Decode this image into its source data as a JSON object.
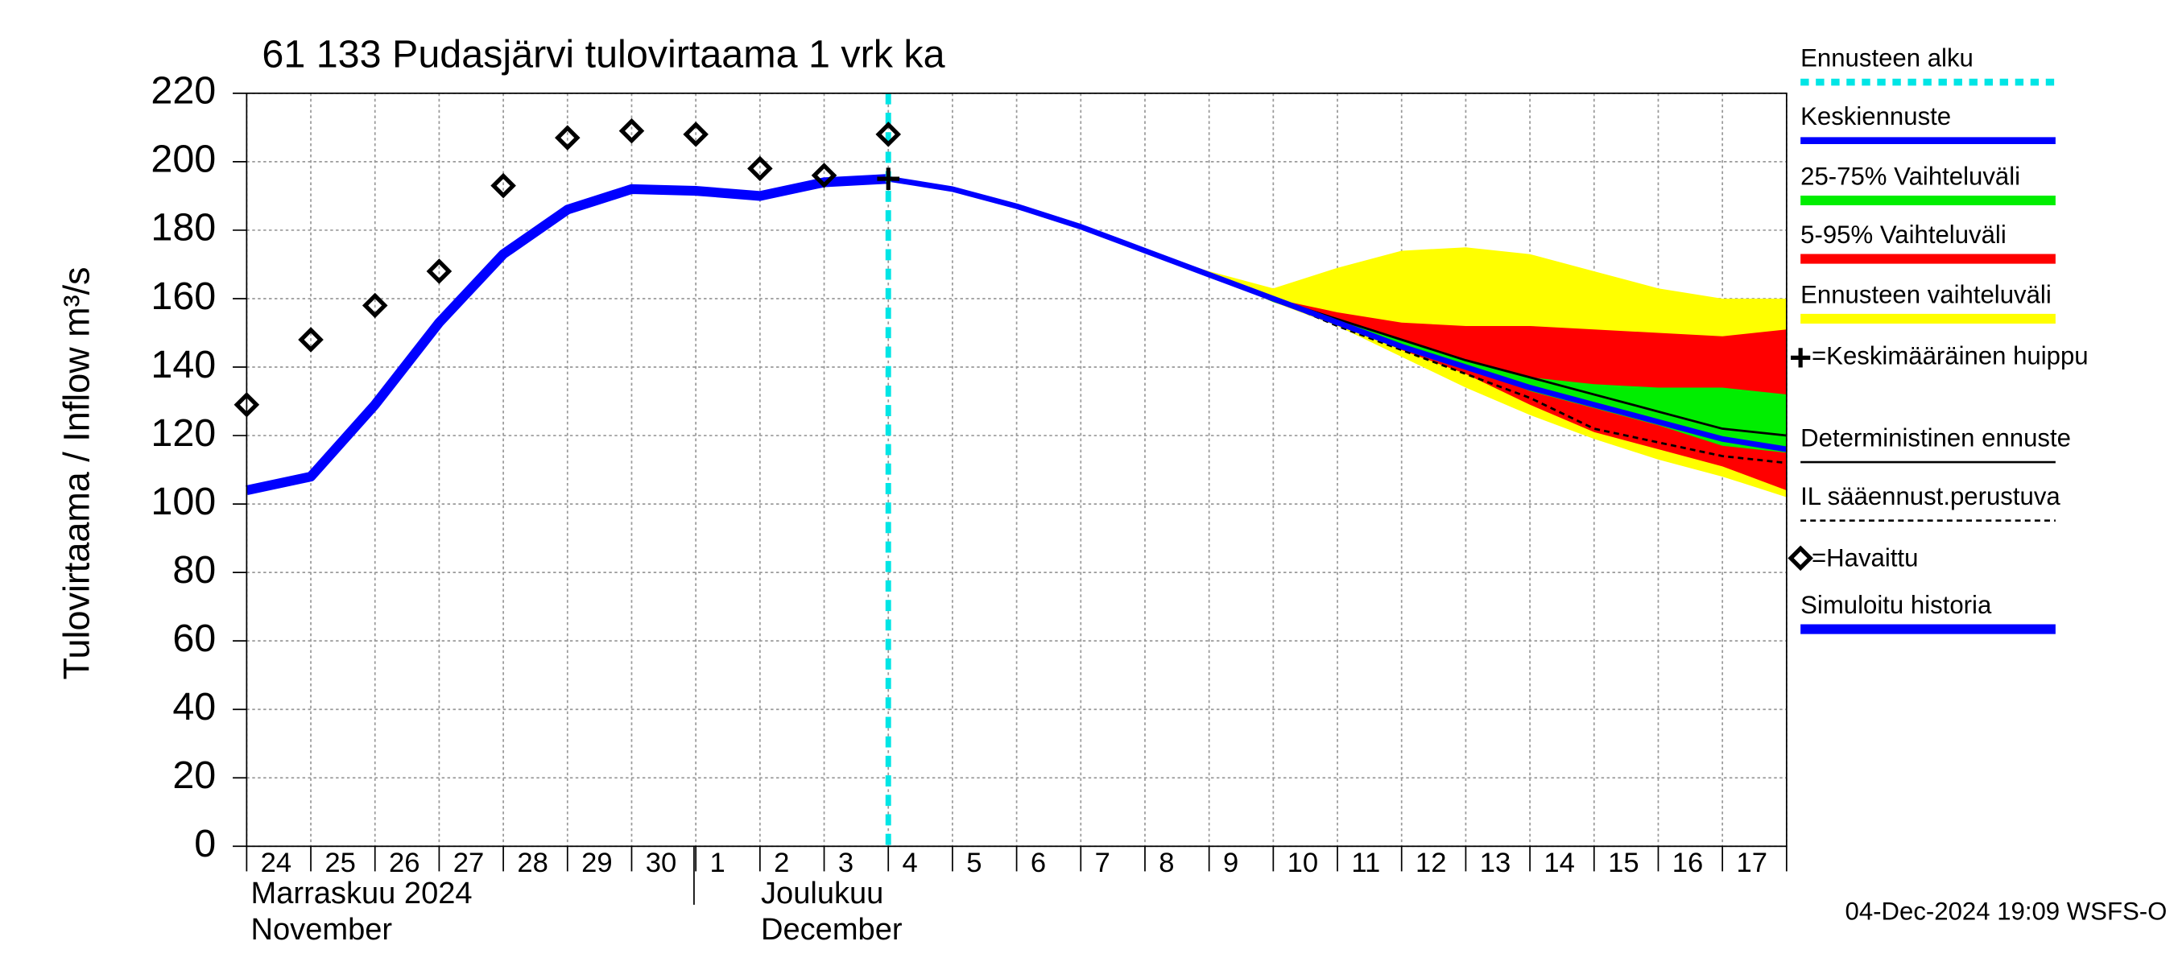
{
  "chart_data": {
    "type": "line",
    "title": "61 133 Pudasjärvi tulovirtaama 1 vrk ka",
    "y_label": "Tulovirtaama / Inflow    m³/s",
    "footer": "04-Dec-2024 19:09 WSFS-O",
    "month_labels": [
      "Marraskuu 2024",
      "November",
      "Joulukuu",
      "December"
    ],
    "categories": [
      "24",
      "25",
      "26",
      "27",
      "28",
      "29",
      "30",
      "1",
      "2",
      "3",
      "4",
      "5",
      "6",
      "7",
      "8",
      "9",
      "10",
      "11",
      "12",
      "13",
      "14",
      "15",
      "16",
      "17",
      null
    ],
    "ylim": [
      0,
      220
    ],
    "yticks": [
      0,
      20,
      40,
      60,
      80,
      100,
      120,
      140,
      160,
      180,
      200,
      220
    ],
    "grid": true,
    "forecast_start": {
      "name": "Ennusteen alku",
      "color": "#00e5e5",
      "category": "4"
    },
    "bands": [
      {
        "name": "Ennusteen vaihteluväli",
        "color": "#ffff00",
        "upper": [
          null,
          null,
          null,
          null,
          null,
          null,
          null,
          null,
          null,
          null,
          195,
          192,
          187,
          181,
          174,
          168,
          163,
          169,
          174,
          175,
          173,
          168,
          163,
          160,
          160
        ],
        "lower": [
          null,
          null,
          null,
          null,
          null,
          null,
          null,
          null,
          null,
          null,
          195,
          192,
          187,
          181,
          174,
          167,
          159,
          152,
          143,
          134,
          126,
          119,
          113,
          108,
          102
        ]
      },
      {
        "name": "5-95% Vaihteluväli",
        "color": "#ff0000",
        "upper": [
          null,
          null,
          null,
          null,
          null,
          null,
          null,
          null,
          null,
          null,
          195,
          192,
          187,
          181,
          174,
          167,
          160,
          156,
          153,
          152,
          152,
          151,
          150,
          149,
          151
        ],
        "lower": [
          null,
          null,
          null,
          null,
          null,
          null,
          null,
          null,
          null,
          null,
          195,
          192,
          187,
          181,
          174,
          167,
          159,
          153,
          145,
          138,
          129,
          121,
          116,
          111,
          104
        ]
      },
      {
        "name": "25-75% Vaihteluväli",
        "color": "#00ee00",
        "upper": [
          null,
          null,
          null,
          null,
          null,
          null,
          null,
          null,
          null,
          null,
          195,
          192,
          187,
          181,
          174,
          167,
          160,
          154,
          148,
          142,
          137,
          135,
          134,
          134,
          132
        ],
        "lower": [
          null,
          null,
          null,
          null,
          null,
          null,
          null,
          null,
          null,
          null,
          195,
          192,
          187,
          181,
          174,
          167,
          159,
          153,
          146,
          140,
          133,
          128,
          123,
          117,
          115
        ]
      }
    ],
    "series": [
      {
        "name": "Simuloitu historia",
        "color": "#0000ff",
        "width": 7,
        "dash": false,
        "values": [
          104,
          108,
          129,
          153,
          173,
          186,
          192,
          191.5,
          190,
          194,
          195,
          null,
          null,
          null,
          null,
          null,
          null,
          null,
          null,
          null,
          null,
          null,
          null,
          null,
          null
        ]
      },
      {
        "name": "Keskiennuste",
        "color": "#0000ff",
        "width": 4,
        "dash": false,
        "values": [
          null,
          null,
          null,
          null,
          null,
          null,
          null,
          null,
          null,
          null,
          195,
          192,
          187,
          181,
          174,
          167,
          160,
          153,
          146,
          140,
          134,
          129,
          124,
          119,
          116
        ]
      },
      {
        "name": "Deterministinen ennuste",
        "color": "#000000",
        "width": 1.6,
        "dash": false,
        "values": [
          null,
          null,
          null,
          null,
          null,
          null,
          null,
          null,
          null,
          null,
          195,
          192,
          187,
          181,
          174,
          167,
          160,
          154,
          148,
          142,
          137,
          132,
          127,
          122,
          120
        ]
      },
      {
        "name": "IL sääennust.perustuva",
        "color": "#000000",
        "width": 1.6,
        "dash": true,
        "values": [
          null,
          null,
          null,
          null,
          null,
          null,
          null,
          null,
          null,
          null,
          195,
          192,
          187,
          181,
          174,
          167,
          160,
          152,
          145,
          138,
          131,
          122,
          118,
          114,
          112
        ]
      }
    ],
    "peak": {
      "name": "=Keskimääräinen huippu",
      "category": "4",
      "value": 195
    },
    "observed": {
      "name": "=Havaittu",
      "values": [
        129,
        148,
        158,
        168,
        193,
        207,
        209,
        208,
        198,
        196,
        208
      ]
    }
  }
}
